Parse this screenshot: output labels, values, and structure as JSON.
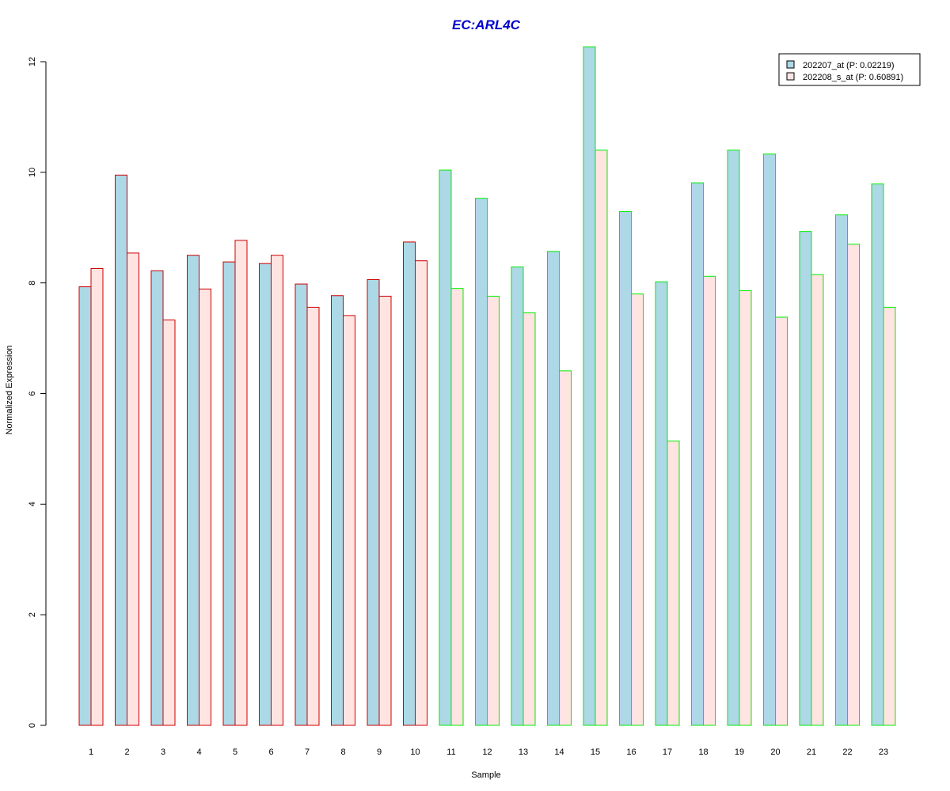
{
  "colors": {
    "title": "#0000cc",
    "series1_fill": "#add8e6",
    "series2_fill": "#ffe4e1",
    "group1_border": "#cc0000",
    "group2_border": "#00ee00",
    "axis": "#000000"
  },
  "chart_data": {
    "type": "bar",
    "title": "EC:ARL4C",
    "xlabel": "Sample",
    "ylabel": "Normalized Expression",
    "ylim": [
      0,
      12
    ],
    "yticks": [
      "0",
      "2",
      "4",
      "6",
      "8",
      "10",
      "12"
    ],
    "categories": [
      "1",
      "2",
      "3",
      "4",
      "5",
      "6",
      "7",
      "8",
      "9",
      "10",
      "11",
      "12",
      "13",
      "14",
      "15",
      "16",
      "17",
      "18",
      "19",
      "20",
      "21",
      "22",
      "23"
    ],
    "groups": [
      1,
      1,
      1,
      1,
      1,
      1,
      1,
      1,
      1,
      1,
      2,
      2,
      2,
      2,
      2,
      2,
      2,
      2,
      2,
      2,
      2,
      2,
      2
    ],
    "legend_position": "top-right",
    "grid": false,
    "series": [
      {
        "name": "202207_at (P: 0.02219)",
        "values": [
          7.93,
          9.95,
          8.22,
          8.5,
          8.38,
          8.35,
          7.98,
          7.77,
          8.06,
          8.74,
          10.04,
          9.53,
          8.29,
          8.57,
          12.27,
          9.29,
          8.02,
          9.81,
          10.4,
          10.33,
          8.93,
          9.23,
          9.79
        ]
      },
      {
        "name": "202208_s_at (P: 0.60891)",
        "values": [
          8.26,
          8.54,
          7.33,
          7.89,
          8.77,
          8.5,
          7.56,
          7.41,
          7.76,
          8.4,
          7.9,
          7.76,
          7.46,
          6.41,
          10.4,
          7.8,
          5.14,
          8.12,
          7.86,
          7.38,
          8.15,
          8.7,
          7.56
        ]
      }
    ]
  }
}
